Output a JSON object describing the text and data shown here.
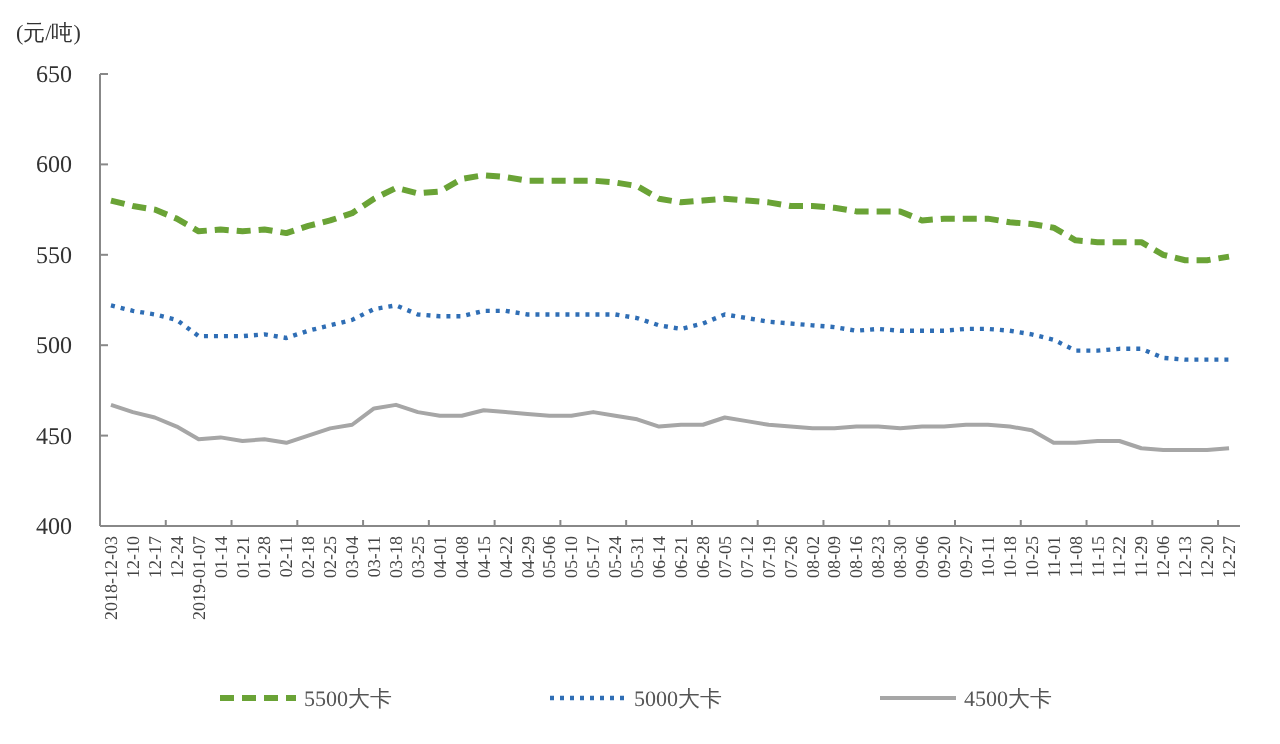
{
  "chart_data": {
    "type": "line",
    "ylabel": "(元/吨)",
    "ylim": [
      400,
      650
    ],
    "yticks": [
      400,
      450,
      500,
      550,
      600,
      650
    ],
    "grid": false,
    "legend": "bottom",
    "marker": "none",
    "categories": [
      "2018-12-03",
      "12-10",
      "12-17",
      "12-24",
      "2019-01-07",
      "01-14",
      "01-21",
      "01-28",
      "02-11",
      "02-18",
      "02-25",
      "03-04",
      "03-11",
      "03-18",
      "03-25",
      "04-01",
      "04-08",
      "04-15",
      "04-22",
      "04-29",
      "05-06",
      "05-10",
      "05-17",
      "05-24",
      "05-31",
      "06-14",
      "06-21",
      "06-28",
      "07-05",
      "07-12",
      "07-19",
      "07-26",
      "08-02",
      "08-09",
      "08-16",
      "08-23",
      "08-30",
      "09-06",
      "09-20",
      "09-27",
      "10-11",
      "10-18",
      "10-25",
      "11-01",
      "11-08",
      "11-15",
      "11-22",
      "11-29",
      "12-06",
      "12-13",
      "12-20",
      "12-27"
    ],
    "series": [
      {
        "name": "5500大卡",
        "color": "#6aa336",
        "line_style": "dashed",
        "values": [
          580,
          577,
          575,
          570,
          563,
          564,
          563,
          564,
          562,
          566,
          569,
          573,
          581,
          587,
          584,
          585,
          592,
          594,
          593,
          591,
          591,
          591,
          591,
          590,
          588,
          581,
          579,
          580,
          581,
          580,
          579,
          577,
          577,
          576,
          574,
          574,
          574,
          569,
          570,
          570,
          570,
          568,
          567,
          565,
          558,
          557,
          557,
          557,
          550,
          547,
          547,
          549
        ]
      },
      {
        "name": "5000大卡",
        "color": "#2f6eb5",
        "line_style": "dotted",
        "values": [
          522,
          519,
          517,
          514,
          505,
          505,
          505,
          506,
          504,
          508,
          511,
          514,
          520,
          522,
          517,
          516,
          516,
          519,
          519,
          517,
          517,
          517,
          517,
          517,
          515,
          511,
          509,
          512,
          517,
          515,
          513,
          512,
          511,
          510,
          508,
          509,
          508,
          508,
          508,
          509,
          509,
          508,
          506,
          503,
          497,
          497,
          498,
          498,
          493,
          492,
          492,
          492
        ]
      },
      {
        "name": "4500大卡",
        "color": "#a6a6a6",
        "line_style": "solid",
        "values": [
          467,
          463,
          460,
          455,
          448,
          449,
          447,
          448,
          446,
          450,
          454,
          456,
          465,
          467,
          463,
          461,
          461,
          464,
          463,
          462,
          461,
          461,
          463,
          461,
          459,
          455,
          456,
          456,
          460,
          458,
          456,
          455,
          454,
          454,
          455,
          455,
          454,
          455,
          455,
          456,
          456,
          455,
          453,
          446,
          446,
          447,
          447,
          443,
          442,
          442,
          442,
          443
        ]
      }
    ]
  }
}
